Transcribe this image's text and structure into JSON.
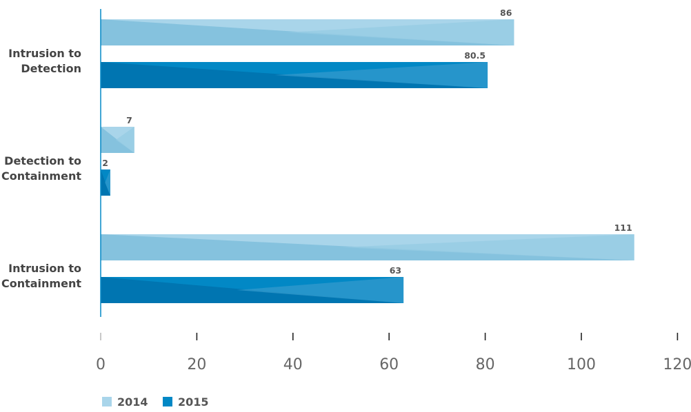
{
  "chart_data": {
    "type": "bar",
    "orientation": "horizontal",
    "categories": [
      [
        "Intrusion to",
        "Detection"
      ],
      [
        "Detection to",
        "Containment"
      ],
      [
        "Intrusion to",
        "Containment"
      ]
    ],
    "series": [
      {
        "name": "2014",
        "values": [
          86,
          7,
          111
        ],
        "labels": [
          "86",
          "7",
          "111"
        ],
        "color": "#a9d5ea"
      },
      {
        "name": "2015",
        "values": [
          80.5,
          2,
          63
        ],
        "labels": [
          "80.5",
          "2",
          "63"
        ],
        "color": "#0288c5"
      }
    ],
    "xlim": [
      0,
      120
    ],
    "xticks": [
      0,
      20,
      40,
      60,
      80,
      100,
      120
    ],
    "xlabel": "",
    "ylabel": "",
    "title": "",
    "grid": false,
    "legend_position": "bottom-left",
    "axis_color": "#0288c5"
  }
}
